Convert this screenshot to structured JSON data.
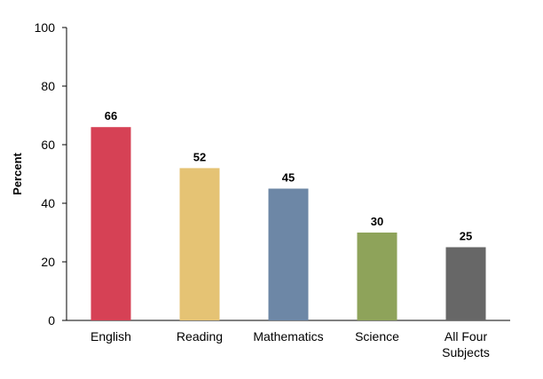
{
  "chart_data": {
    "type": "bar",
    "title": "",
    "xlabel": "",
    "ylabel": "Percent",
    "ylim": [
      0,
      100
    ],
    "yticks": [
      0,
      20,
      40,
      60,
      80,
      100
    ],
    "grid": false,
    "legend": "none",
    "categories": [
      [
        "English"
      ],
      [
        "Reading"
      ],
      [
        "Mathematics"
      ],
      [
        "Science"
      ],
      [
        "All Four",
        "Subjects"
      ]
    ],
    "values": [
      66,
      52,
      45,
      30,
      25
    ],
    "colors": [
      "#d64155",
      "#e5c374",
      "#6d87a6",
      "#8ea35a",
      "#676767"
    ]
  }
}
